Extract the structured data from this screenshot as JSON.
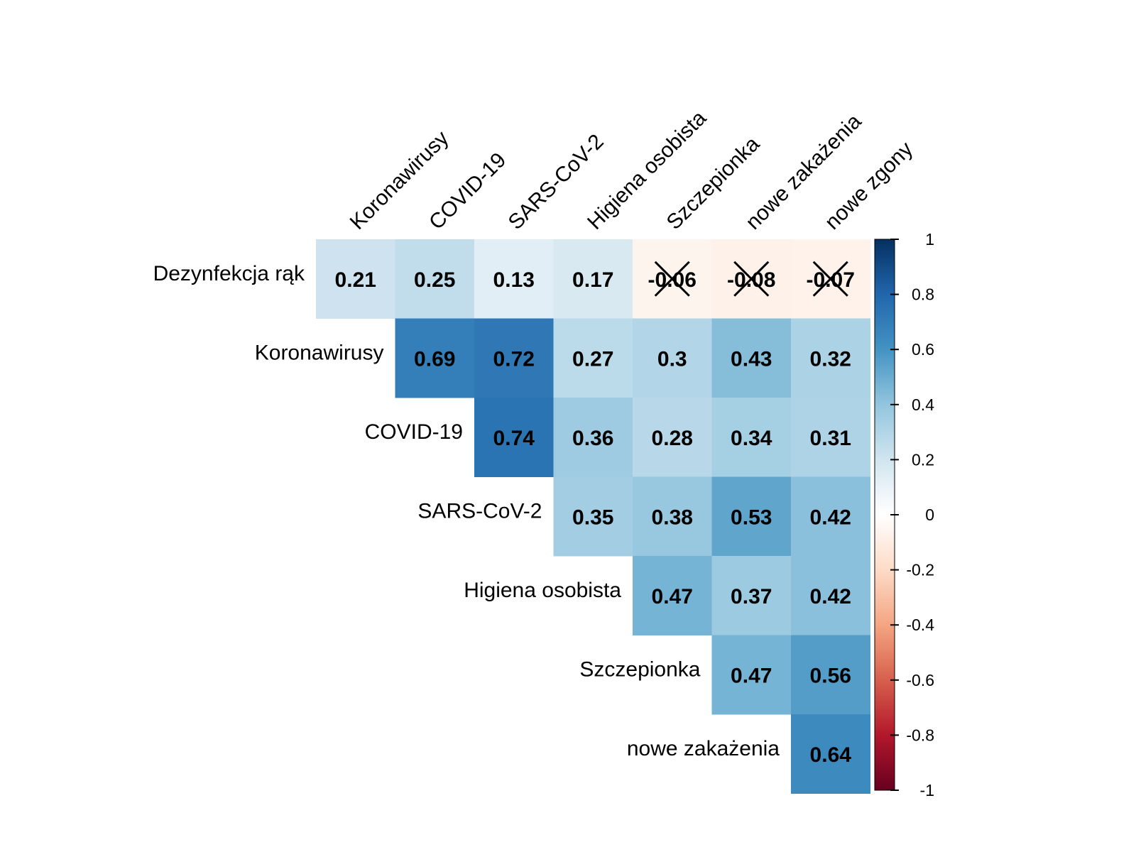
{
  "chart_data": {
    "type": "heatmap",
    "variant": "correlation-upper-triangle",
    "row_labels": [
      "Dezynfekcja rąk",
      "Koronawirusy",
      "COVID-19",
      "SARS-CoV-2",
      "Higiena osobista",
      "Szczepionka",
      "nowe zakażenia"
    ],
    "col_labels": [
      "Koronawirusy",
      "COVID-19",
      "SARS-CoV-2",
      "Higiena osobista",
      "Szczepionka",
      "nowe zakażenia",
      "nowe zgony"
    ],
    "cells": [
      {
        "row": 0,
        "col": 0,
        "value": 0.21,
        "label": "0.21",
        "crossed": false
      },
      {
        "row": 0,
        "col": 1,
        "value": 0.25,
        "label": "0.25",
        "crossed": false
      },
      {
        "row": 0,
        "col": 2,
        "value": 0.13,
        "label": "0.13",
        "crossed": false
      },
      {
        "row": 0,
        "col": 3,
        "value": 0.17,
        "label": "0.17",
        "crossed": false
      },
      {
        "row": 0,
        "col": 4,
        "value": -0.06,
        "label": "-0.06",
        "crossed": true
      },
      {
        "row": 0,
        "col": 5,
        "value": -0.08,
        "label": "-0.08",
        "crossed": true
      },
      {
        "row": 0,
        "col": 6,
        "value": -0.07,
        "label": "-0.07",
        "crossed": true
      },
      {
        "row": 1,
        "col": 1,
        "value": 0.69,
        "label": "0.69",
        "crossed": false
      },
      {
        "row": 1,
        "col": 2,
        "value": 0.72,
        "label": "0.72",
        "crossed": false
      },
      {
        "row": 1,
        "col": 3,
        "value": 0.27,
        "label": "0.27",
        "crossed": false
      },
      {
        "row": 1,
        "col": 4,
        "value": 0.3,
        "label": "0.3",
        "crossed": false
      },
      {
        "row": 1,
        "col": 5,
        "value": 0.43,
        "label": "0.43",
        "crossed": false
      },
      {
        "row": 1,
        "col": 6,
        "value": 0.32,
        "label": "0.32",
        "crossed": false
      },
      {
        "row": 2,
        "col": 2,
        "value": 0.74,
        "label": "0.74",
        "crossed": false
      },
      {
        "row": 2,
        "col": 3,
        "value": 0.36,
        "label": "0.36",
        "crossed": false
      },
      {
        "row": 2,
        "col": 4,
        "value": 0.28,
        "label": "0.28",
        "crossed": false
      },
      {
        "row": 2,
        "col": 5,
        "value": 0.34,
        "label": "0.34",
        "crossed": false
      },
      {
        "row": 2,
        "col": 6,
        "value": 0.31,
        "label": "0.31",
        "crossed": false
      },
      {
        "row": 3,
        "col": 3,
        "value": 0.35,
        "label": "0.35",
        "crossed": false
      },
      {
        "row": 3,
        "col": 4,
        "value": 0.38,
        "label": "0.38",
        "crossed": false
      },
      {
        "row": 3,
        "col": 5,
        "value": 0.53,
        "label": "0.53",
        "crossed": false
      },
      {
        "row": 3,
        "col": 6,
        "value": 0.42,
        "label": "0.42",
        "crossed": false
      },
      {
        "row": 4,
        "col": 4,
        "value": 0.47,
        "label": "0.47",
        "crossed": false
      },
      {
        "row": 4,
        "col": 5,
        "value": 0.37,
        "label": "0.37",
        "crossed": false
      },
      {
        "row": 4,
        "col": 6,
        "value": 0.42,
        "label": "0.42",
        "crossed": false
      },
      {
        "row": 5,
        "col": 5,
        "value": 0.47,
        "label": "0.47",
        "crossed": false
      },
      {
        "row": 5,
        "col": 6,
        "value": 0.56,
        "label": "0.56",
        "crossed": false
      },
      {
        "row": 6,
        "col": 6,
        "value": 0.64,
        "label": "0.64",
        "crossed": false
      }
    ],
    "color_scale": {
      "range": [
        -1,
        1
      ],
      "ticks": [
        "1",
        "0.8",
        "0.6",
        "0.4",
        "0.2",
        "0",
        "-0.2",
        "-0.4",
        "-0.6",
        "-0.8",
        "-1"
      ],
      "colors": [
        "#67001f",
        "#b2182b",
        "#d6604d",
        "#f4a582",
        "#fddbc7",
        "#ffffff",
        "#d1e5f0",
        "#92c5de",
        "#4393c3",
        "#2166ac",
        "#053061"
      ]
    },
    "legend_position": "right",
    "grid": false
  }
}
